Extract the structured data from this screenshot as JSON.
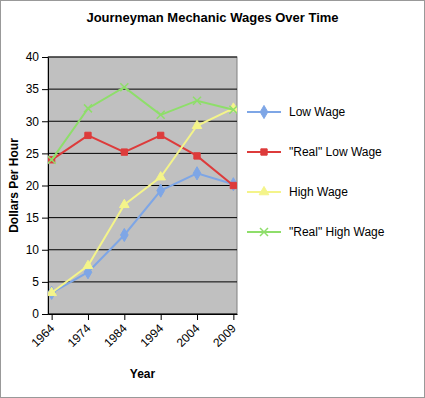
{
  "chart_data": {
    "type": "line",
    "title": "Journeyman Mechanic Wages Over Time",
    "x_label": "Year",
    "y_label": "Dollars Per Hour",
    "categories": [
      "1964",
      "1974",
      "1984",
      "1994",
      "2004",
      "2009"
    ],
    "series": [
      {
        "name": "Low Wage",
        "color": "#7ea6e6",
        "marker": "diamond",
        "values": [
          3.3,
          6.5,
          12.3,
          19.2,
          21.9,
          20.2
        ]
      },
      {
        "name": "\"Real\" Low Wage",
        "color": "#dd3b3b",
        "marker": "square",
        "values": [
          24,
          27.8,
          25.2,
          27.8,
          24.6,
          20
        ]
      },
      {
        "name": "High Wage",
        "color": "#f4f48a",
        "marker": "triangle",
        "values": [
          3.3,
          7.5,
          17,
          21.3,
          29.3,
          32
        ]
      },
      {
        "name": "\"Real\" High Wage",
        "color": "#8ede6a",
        "marker": "x",
        "values": [
          24,
          32,
          35.3,
          31,
          33.2,
          31.8
        ]
      }
    ],
    "ylim": [
      0,
      40
    ],
    "yticks": [
      0,
      5,
      10,
      15,
      20,
      25,
      30,
      35,
      40
    ],
    "grid": true,
    "legend": "right"
  }
}
